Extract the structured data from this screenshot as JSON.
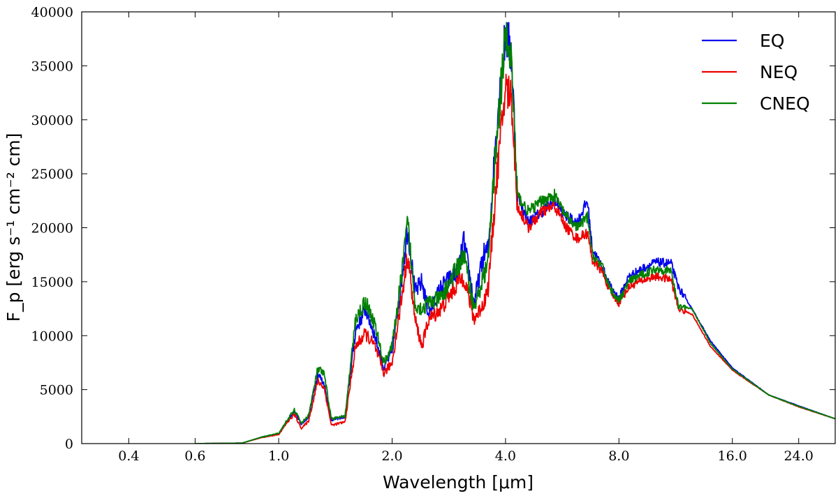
{
  "chart_data": {
    "type": "line",
    "xlabel": "Wavelength [μm]",
    "ylabel": "F_p [erg s⁻¹ cm⁻² cm]",
    "x_scale": "log",
    "xlim": [
      0.3,
      30
    ],
    "ylim": [
      0,
      40000
    ],
    "x_ticks": [
      0.4,
      0.6,
      1.0,
      2.0,
      4.0,
      8.0,
      16.0,
      24.0
    ],
    "x_tick_labels": [
      "0.4",
      "0.6",
      "1.0",
      "2.0",
      "4.0",
      "8.0",
      "16.0",
      "24.0"
    ],
    "y_ticks": [
      0,
      5000,
      10000,
      15000,
      20000,
      25000,
      30000,
      35000,
      40000
    ],
    "y_tick_labels": [
      "0",
      "5000",
      "10000",
      "15000",
      "20000",
      "25000",
      "30000",
      "35000",
      "40000"
    ],
    "grid": false,
    "legend_position": "top-right",
    "series": [
      {
        "name": "EQ",
        "color": "#0000ee",
        "points": [
          [
            0.6,
            0
          ],
          [
            0.8,
            50
          ],
          [
            0.9,
            600
          ],
          [
            1.0,
            900
          ],
          [
            1.05,
            2000
          ],
          [
            1.1,
            3000
          ],
          [
            1.15,
            1800
          ],
          [
            1.2,
            2500
          ],
          [
            1.27,
            6500
          ],
          [
            1.32,
            5500
          ],
          [
            1.38,
            2200
          ],
          [
            1.5,
            2500
          ],
          [
            1.6,
            10500
          ],
          [
            1.7,
            12500
          ],
          [
            1.8,
            10000
          ],
          [
            1.9,
            7000
          ],
          [
            2.0,
            8500
          ],
          [
            2.1,
            14000
          ],
          [
            2.2,
            20000
          ],
          [
            2.3,
            14000
          ],
          [
            2.4,
            15000
          ],
          [
            2.5,
            12000
          ],
          [
            2.7,
            14500
          ],
          [
            3.0,
            16000
          ],
          [
            3.1,
            18800
          ],
          [
            3.3,
            13000
          ],
          [
            3.5,
            17500
          ],
          [
            3.6,
            18000
          ],
          [
            3.8,
            30000
          ],
          [
            4.0,
            38000
          ],
          [
            4.15,
            36000
          ],
          [
            4.3,
            23000
          ],
          [
            4.6,
            20500
          ],
          [
            5.0,
            21500
          ],
          [
            5.4,
            22500
          ],
          [
            5.8,
            21000
          ],
          [
            6.2,
            20500
          ],
          [
            6.6,
            22500
          ],
          [
            6.8,
            18000
          ],
          [
            7.2,
            16500
          ],
          [
            7.6,
            14500
          ],
          [
            8.0,
            13500
          ],
          [
            8.5,
            15500
          ],
          [
            9.0,
            16000
          ],
          [
            10.0,
            16800
          ],
          [
            11.0,
            16700
          ],
          [
            11.5,
            14500
          ],
          [
            12.5,
            12500
          ],
          [
            14.0,
            9500
          ],
          [
            16.0,
            7000
          ],
          [
            20.0,
            4500
          ],
          [
            24.0,
            3500
          ],
          [
            30.0,
            2300
          ]
        ]
      },
      {
        "name": "NEQ",
        "color": "#ee0000",
        "points": [
          [
            0.6,
            0
          ],
          [
            0.8,
            50
          ],
          [
            0.9,
            550
          ],
          [
            1.0,
            850
          ],
          [
            1.05,
            1900
          ],
          [
            1.1,
            2700
          ],
          [
            1.15,
            1400
          ],
          [
            1.2,
            2100
          ],
          [
            1.27,
            5800
          ],
          [
            1.32,
            5200
          ],
          [
            1.38,
            1700
          ],
          [
            1.5,
            2000
          ],
          [
            1.6,
            9000
          ],
          [
            1.7,
            10200
          ],
          [
            1.8,
            9000
          ],
          [
            1.9,
            6500
          ],
          [
            2.0,
            7500
          ],
          [
            2.1,
            12500
          ],
          [
            2.2,
            17500
          ],
          [
            2.3,
            11500
          ],
          [
            2.4,
            9000
          ],
          [
            2.5,
            11500
          ],
          [
            2.7,
            12500
          ],
          [
            3.0,
            15000
          ],
          [
            3.1,
            15500
          ],
          [
            3.3,
            11500
          ],
          [
            3.5,
            13000
          ],
          [
            3.6,
            14500
          ],
          [
            3.8,
            25000
          ],
          [
            4.0,
            33000
          ],
          [
            4.15,
            32000
          ],
          [
            4.3,
            22000
          ],
          [
            4.6,
            20000
          ],
          [
            5.0,
            21500
          ],
          [
            5.4,
            22000
          ],
          [
            5.8,
            20000
          ],
          [
            6.2,
            19000
          ],
          [
            6.6,
            19500
          ],
          [
            6.8,
            17000
          ],
          [
            7.2,
            16000
          ],
          [
            7.6,
            14000
          ],
          [
            8.0,
            13000
          ],
          [
            8.5,
            14500
          ],
          [
            9.0,
            15000
          ],
          [
            10.0,
            15500
          ],
          [
            11.0,
            15200
          ],
          [
            11.5,
            12500
          ],
          [
            12.5,
            12000
          ],
          [
            14.0,
            9000
          ],
          [
            16.0,
            6800
          ],
          [
            20.0,
            4500
          ],
          [
            24.0,
            3400
          ],
          [
            30.0,
            2300
          ]
        ]
      },
      {
        "name": "CNEQ",
        "color": "#008000",
        "points": [
          [
            0.6,
            0
          ],
          [
            0.8,
            50
          ],
          [
            0.9,
            600
          ],
          [
            1.0,
            950
          ],
          [
            1.05,
            2100
          ],
          [
            1.1,
            3100
          ],
          [
            1.15,
            1900
          ],
          [
            1.2,
            2600
          ],
          [
            1.27,
            6900
          ],
          [
            1.32,
            6400
          ],
          [
            1.38,
            2300
          ],
          [
            1.5,
            2500
          ],
          [
            1.6,
            11500
          ],
          [
            1.7,
            13200
          ],
          [
            1.8,
            11000
          ],
          [
            1.9,
            7500
          ],
          [
            2.0,
            9000
          ],
          [
            2.1,
            14500
          ],
          [
            2.2,
            20500
          ],
          [
            2.3,
            13000
          ],
          [
            2.4,
            12500
          ],
          [
            2.5,
            13000
          ],
          [
            2.7,
            13500
          ],
          [
            3.0,
            16500
          ],
          [
            3.1,
            17500
          ],
          [
            3.3,
            12500
          ],
          [
            3.5,
            15500
          ],
          [
            3.6,
            17000
          ],
          [
            3.8,
            29000
          ],
          [
            4.0,
            37500
          ],
          [
            4.15,
            35500
          ],
          [
            4.3,
            23000
          ],
          [
            4.6,
            21500
          ],
          [
            5.0,
            22500
          ],
          [
            5.4,
            23000
          ],
          [
            5.8,
            21000
          ],
          [
            6.2,
            20000
          ],
          [
            6.6,
            21000
          ],
          [
            6.8,
            17500
          ],
          [
            7.2,
            16500
          ],
          [
            7.6,
            14300
          ],
          [
            8.0,
            13200
          ],
          [
            8.5,
            15000
          ],
          [
            9.0,
            15500
          ],
          [
            10.0,
            16200
          ],
          [
            11.0,
            16000
          ],
          [
            11.5,
            12800
          ],
          [
            12.5,
            12500
          ],
          [
            14.0,
            9300
          ],
          [
            16.0,
            6900
          ],
          [
            20.0,
            4500
          ],
          [
            24.0,
            3450
          ],
          [
            30.0,
            2300
          ]
        ]
      }
    ]
  }
}
